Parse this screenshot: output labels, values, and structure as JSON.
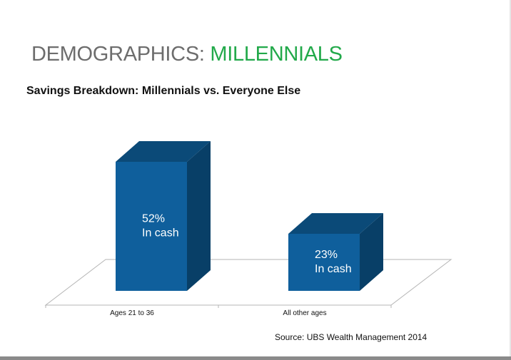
{
  "slide": {
    "title_prefix": "DEMOGRAPHICS: ",
    "title_accent": "MILLENNIALS",
    "source": "Source: UBS Wealth Management 2014"
  },
  "colors": {
    "title_gray": "#6d6d6d",
    "title_green": "#22a94a",
    "bar_front": "#0f5f9c",
    "bar_top": "#0b4a78",
    "bar_side": "#083f67",
    "floor_line": "#b5b5b5"
  },
  "chart_data": {
    "type": "bar",
    "title": "Savings Breakdown:  Millennials vs. Everyone Else",
    "categories": [
      "Ages 21 to 36",
      "All other ages"
    ],
    "values": [
      52,
      23
    ],
    "unit": "%",
    "data_labels": [
      [
        "52%",
        "In cash"
      ],
      [
        "23%",
        "In cash"
      ]
    ],
    "xlabel": "",
    "ylabel": "",
    "ylim": [
      0,
      60
    ],
    "grid": false,
    "legend": "none",
    "style": "3d-column"
  }
}
